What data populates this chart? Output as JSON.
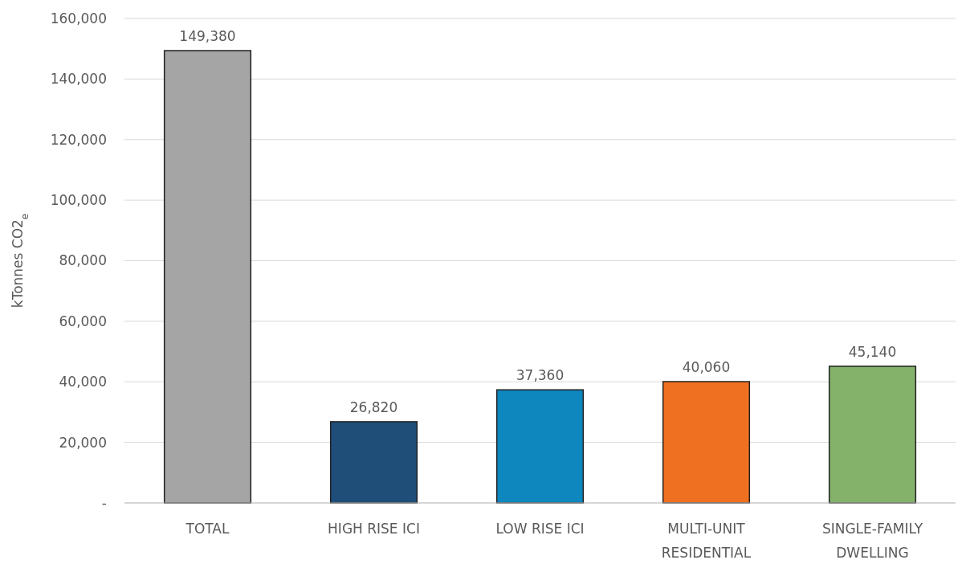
{
  "chart_data": {
    "type": "bar",
    "ylabel": "kTonnes CO2$_{e}$",
    "categories": [
      "TOTAL",
      "HIGH RISE ICI",
      "LOW RISE ICI",
      "MULTI-UNIT\nRESIDENTIAL",
      "SINGLE-FAMILY\nDWELLING"
    ],
    "values": [
      149380,
      26820,
      37360,
      40060,
      45140
    ],
    "colors": [
      "#a5a5a5",
      "#1f4e79",
      "#0e86be",
      "#f07021",
      "#84b26a"
    ],
    "ylim": [
      0,
      160000
    ],
    "yticks": [
      {
        "value": 0,
        "label": "-"
      },
      {
        "value": 20000,
        "label": "20,000"
      },
      {
        "value": 40000,
        "label": "40,000"
      },
      {
        "value": 60000,
        "label": "60,000"
      },
      {
        "value": 80000,
        "label": "80,000"
      },
      {
        "value": 100000,
        "label": "100,000"
      },
      {
        "value": 120000,
        "label": "120,000"
      },
      {
        "value": 140000,
        "label": "140,000"
      },
      {
        "value": 160000,
        "label": "160,000"
      }
    ],
    "value_labels": [
      "149,380",
      "26,820",
      "37,360",
      "40,060",
      "45,140"
    ],
    "grid": "y"
  }
}
